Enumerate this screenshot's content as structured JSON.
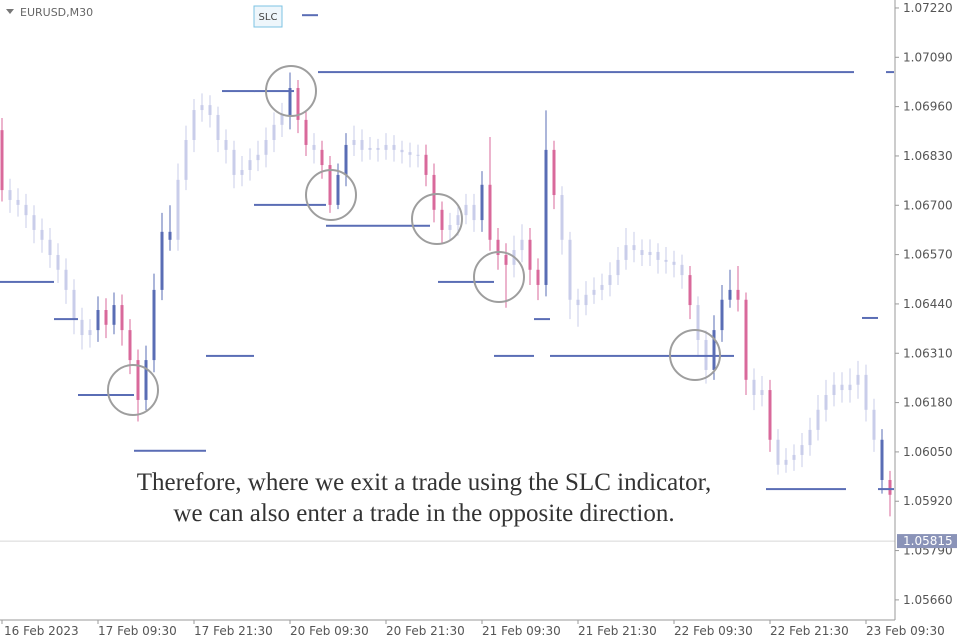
{
  "chart_data": {
    "type": "candlestick",
    "symbol": "EURUSD,M30",
    "indicator": "SLC",
    "caption": [
      "Therefore, where we exit a trade using the SLC indicator,",
      "we can also enter a trade in the opposite direction."
    ],
    "categories": [
      "16 Feb 2023",
      null,
      null,
      null,
      null,
      null,
      null,
      null,
      null,
      null,
      null,
      null,
      "17 Feb 09:30",
      null,
      null,
      null,
      null,
      null,
      null,
      null,
      null,
      null,
      null,
      null,
      "17 Feb 21:30",
      null,
      null,
      null,
      null,
      null,
      null,
      null,
      null,
      null,
      null,
      null,
      "20 Feb 09:30",
      null,
      null,
      null,
      null,
      null,
      null,
      null,
      null,
      null,
      null,
      null,
      "20 Feb 21:30",
      null,
      null,
      null,
      null,
      null,
      null,
      null,
      null,
      null,
      null,
      null,
      "21 Feb 09:30",
      null,
      null,
      null,
      null,
      null,
      null,
      null,
      null,
      null,
      null,
      null,
      "21 Feb 21:30",
      null,
      null,
      null,
      null,
      null,
      null,
      null,
      null,
      null,
      null,
      null,
      "22 Feb 09:30",
      null,
      null,
      null,
      null,
      null,
      null,
      null,
      null,
      null,
      null,
      null,
      "22 Feb 21:30",
      null,
      null,
      null,
      null,
      null,
      null,
      null,
      null,
      null,
      null,
      null,
      "23 Feb 09:30",
      null,
      null,
      null
    ],
    "open": [
      1.06898,
      1.0674,
      1.06714,
      1.06701,
      1.06674,
      1.06635,
      1.06609,
      1.06569,
      1.0653,
      1.06477,
      1.06398,
      1.06358,
      1.06371,
      1.06424,
      1.06385,
      1.06437,
      1.06371,
      1.06292,
      1.06187,
      1.06292,
      1.06477,
      1.0663,
      1.06609,
      1.06767,
      1.06872,
      1.06951,
      1.06964,
      1.06938,
      1.06872,
      1.06846,
      1.0678,
      1.06793,
      1.06819,
      1.06833,
      1.06872,
      1.06912,
      1.06938,
      1.07009,
      1.06925,
      1.06859,
      1.06846,
      1.06806,
      1.06701,
      1.0678,
      1.06859,
      1.06872,
      1.06846,
      1.06851,
      1.06846,
      1.06859,
      1.06846,
      1.0684,
      1.06833,
      1.06833,
      1.0678,
      1.06688,
      1.06635,
      1.06648,
      1.06674,
      1.06701,
      1.06661,
      1.06754,
      1.06609,
      1.06569,
      1.06543,
      1.06582,
      1.06609,
      1.0653,
      1.0649,
      1.06846,
      1.06727,
      1.06609,
      1.06451,
      1.06437,
      1.06464,
      1.06477,
      1.0649,
      1.06516,
      1.06556,
      1.06595,
      1.06582,
      1.06569,
      1.06577,
      1.06556,
      1.06551,
      1.06543,
      1.06516,
      1.06437,
      1.06345,
      1.06266,
      1.06371,
      1.06451,
      1.06477,
      1.06451,
      1.0624,
      1.062,
      1.06213,
      1.06082,
      1.06016,
      1.06029,
      1.06042,
      1.06068,
      1.06108,
      1.06161,
      1.062,
      1.06227,
      1.06213,
      1.06227,
      1.06253,
      1.06161,
      1.06082,
      1.05976
    ],
    "high": [
      1.0693,
      1.0677,
      1.06745,
      1.0673,
      1.067,
      1.06665,
      1.0664,
      1.066,
      1.0656,
      1.06505,
      1.0643,
      1.064,
      1.0646,
      1.06455,
      1.0647,
      1.06465,
      1.064,
      1.0632,
      1.0633,
      1.0652,
      1.0668,
      1.067,
      1.0681,
      1.0691,
      1.0698,
      1.06995,
      1.0699,
      1.0696,
      1.069,
      1.0687,
      1.0683,
      1.0685,
      1.0687,
      1.06905,
      1.06945,
      1.0697,
      1.0705,
      1.0703,
      1.0695,
      1.0689,
      1.0687,
      1.0683,
      1.0681,
      1.0689,
      1.0691,
      1.069,
      1.0688,
      1.06875,
      1.0689,
      1.06885,
      1.0687,
      1.06865,
      1.0686,
      1.0686,
      1.0681,
      1.0671,
      1.0668,
      1.067,
      1.0673,
      1.0673,
      1.0679,
      1.0688,
      1.0664,
      1.066,
      1.0662,
      1.0665,
      1.0664,
      1.0656,
      1.0695,
      1.0687,
      1.0675,
      1.0663,
      1.0648,
      1.065,
      1.0651,
      1.0652,
      1.0655,
      1.0659,
      1.0664,
      1.0663,
      1.0661,
      1.0661,
      1.066,
      1.0659,
      1.0658,
      1.0657,
      1.0654,
      1.0646,
      1.0637,
      1.0641,
      1.0649,
      1.0653,
      1.0654,
      1.0647,
      1.0627,
      1.0625,
      1.0624,
      1.0611,
      1.0606,
      1.0607,
      1.061,
      1.0614,
      1.062,
      1.0624,
      1.0626,
      1.0626,
      1.0627,
      1.0629,
      1.0628,
      1.0619,
      1.0611,
      1.06
    ],
    "low": [
      1.0671,
      1.0668,
      1.0667,
      1.0664,
      1.066,
      1.06575,
      1.06535,
      1.06495,
      1.0644,
      1.0636,
      1.0632,
      1.06325,
      1.0634,
      1.0635,
      1.0636,
      1.0633,
      1.06255,
      1.0613,
      1.0616,
      1.0626,
      1.0645,
      1.0658,
      1.0658,
      1.0674,
      1.0684,
      1.0692,
      1.06905,
      1.0684,
      1.0681,
      1.06745,
      1.0675,
      1.06765,
      1.0679,
      1.068,
      1.0684,
      1.0688,
      1.069,
      1.0689,
      1.0683,
      1.0681,
      1.0677,
      1.0668,
      1.0669,
      1.0675,
      1.0683,
      1.06815,
      1.0682,
      1.06815,
      1.0682,
      1.06815,
      1.0681,
      1.068,
      1.068,
      1.0675,
      1.06655,
      1.066,
      1.06605,
      1.0662,
      1.0665,
      1.0663,
      1.0663,
      1.0658,
      1.0653,
      1.0643,
      1.0651,
      1.0655,
      1.0649,
      1.0645,
      1.0646,
      1.0669,
      1.0657,
      1.064,
      1.0638,
      1.0641,
      1.0644,
      1.0645,
      1.0646,
      1.0649,
      1.0653,
      1.0655,
      1.0654,
      1.0654,
      1.0652,
      1.0652,
      1.0651,
      1.0648,
      1.064,
      1.063,
      1.0623,
      1.0624,
      1.0634,
      1.0643,
      1.0642,
      1.062,
      1.0616,
      1.0617,
      1.0605,
      1.0599,
      1.05995,
      1.06,
      1.0601,
      1.0604,
      1.0608,
      1.0613,
      1.0617,
      1.0618,
      1.0618,
      1.0619,
      1.0613,
      1.0605,
      1.0594,
      1.0588
    ],
    "close": [
      1.0674,
      1.06714,
      1.06701,
      1.06674,
      1.06635,
      1.06609,
      1.06569,
      1.0653,
      1.06477,
      1.06398,
      1.06358,
      1.06371,
      1.06424,
      1.06385,
      1.06437,
      1.06371,
      1.06292,
      1.06187,
      1.06292,
      1.06477,
      1.0663,
      1.06609,
      1.06767,
      1.06872,
      1.06951,
      1.06964,
      1.06938,
      1.06872,
      1.06846,
      1.0678,
      1.06793,
      1.06819,
      1.06833,
      1.06872,
      1.06912,
      1.06938,
      1.07009,
      1.06925,
      1.06859,
      1.06846,
      1.06806,
      1.06701,
      1.0678,
      1.06859,
      1.06872,
      1.06846,
      1.06851,
      1.06846,
      1.06859,
      1.06846,
      1.0684,
      1.06833,
      1.06833,
      1.0678,
      1.06688,
      1.06635,
      1.06648,
      1.06674,
      1.06701,
      1.06661,
      1.06754,
      1.06609,
      1.06569,
      1.06543,
      1.06582,
      1.06609,
      1.0653,
      1.0649,
      1.06846,
      1.06727,
      1.06609,
      1.06451,
      1.06437,
      1.06464,
      1.06477,
      1.0649,
      1.06516,
      1.06556,
      1.06595,
      1.06582,
      1.06569,
      1.06577,
      1.06556,
      1.06551,
      1.06543,
      1.06516,
      1.06437,
      1.06345,
      1.06266,
      1.06371,
      1.06451,
      1.06477,
      1.06451,
      1.0624,
      1.062,
      1.06213,
      1.06082,
      1.06016,
      1.06029,
      1.06042,
      1.06068,
      1.06108,
      1.06161,
      1.062,
      1.06227,
      1.06213,
      1.06227,
      1.06253,
      1.06161,
      1.06082,
      1.05976,
      1.05937
    ],
    "colors": [
      "#d9699b",
      "#c9cdea",
      "#c9cdea",
      "#c9cdea",
      "#c9cdea",
      "#c9cdea",
      "#c9cdea",
      "#c9cdea",
      "#c9cdea",
      "#c9cdea",
      "#c9cdea",
      "#c9cdea",
      "#5a6db5",
      "#d9699b",
      "#5a6db5",
      "#d9699b",
      "#d9699b",
      "#d9699b",
      "#5a6db5",
      "#5a6db5",
      "#5a6db5",
      "#5a6db5",
      "#c9cdea",
      "#c9cdea",
      "#c9cdea",
      "#c9cdea",
      "#c9cdea",
      "#c9cdea",
      "#c9cdea",
      "#c9cdea",
      "#c9cdea",
      "#c9cdea",
      "#c9cdea",
      "#c9cdea",
      "#c9cdea",
      "#c9cdea",
      "#5a6db5",
      "#d9699b",
      "#d9699b",
      "#c9cdea",
      "#d9699b",
      "#d9699b",
      "#5a6db5",
      "#5a6db5",
      "#c9cdea",
      "#c9cdea",
      "#c9cdea",
      "#c9cdea",
      "#c9cdea",
      "#c9cdea",
      "#c9cdea",
      "#c9cdea",
      "#c9cdea",
      "#d9699b",
      "#d9699b",
      "#d9699b",
      "#c9cdea",
      "#c9cdea",
      "#c9cdea",
      "#c9cdea",
      "#5a6db5",
      "#d9699b",
      "#d9699b",
      "#d9699b",
      "#c9cdea",
      "#c9cdea",
      "#d9699b",
      "#d9699b",
      "#5a6db5",
      "#d9699b",
      "#c9cdea",
      "#c9cdea",
      "#c9cdea",
      "#c9cdea",
      "#c9cdea",
      "#c9cdea",
      "#c9cdea",
      "#c9cdea",
      "#c9cdea",
      "#c9cdea",
      "#c9cdea",
      "#c9cdea",
      "#c9cdea",
      "#c9cdea",
      "#c9cdea",
      "#c9cdea",
      "#d9699b",
      "#c9cdea",
      "#c9cdea",
      "#5a6db5",
      "#5a6db5",
      "#5a6db5",
      "#d9699b",
      "#d9699b",
      "#c9cdea",
      "#c9cdea",
      "#d9699b",
      "#c9cdea",
      "#c9cdea",
      "#c9cdea",
      "#c9cdea",
      "#c9cdea",
      "#c9cdea",
      "#c9cdea",
      "#c9cdea",
      "#c9cdea",
      "#c9cdea",
      "#c9cdea",
      "#c9cdea",
      "#c9cdea",
      "#5a6db5",
      "#d9699b"
    ],
    "levels": [
      {
        "color": "#5a6db5",
        "values": [
          1.06498,
          1.06498,
          1.06498,
          1.06498,
          1.06498,
          1.06498,
          1.06498,
          1.064,
          1.064,
          1.064,
          1.062,
          1.062,
          1.062,
          1.062,
          1.062,
          1.062,
          1.062,
          1.06053,
          1.06053,
          1.06053,
          1.06053,
          1.06053,
          1.06053,
          1.06053,
          1.06053,
          1.06053,
          1.06303,
          1.06303,
          1.06303,
          1.06303,
          1.06303,
          1.06303,
          1.06701,
          1.06701,
          1.06701,
          1.06701,
          1.06701,
          1.06701,
          1.06701,
          1.06701,
          1.06701,
          1.06646,
          1.06646,
          1.06646,
          1.06646,
          1.06646,
          1.06646,
          1.06646,
          1.06646,
          1.06646,
          1.06646,
          1.06646,
          1.06646,
          1.06646,
          null,
          1.06498,
          1.06498,
          1.06498,
          1.06498,
          1.06498,
          1.06498,
          1.06498,
          1.06303,
          1.06303,
          1.06303,
          1.06303,
          1.06303,
          1.064,
          1.064,
          1.06303,
          1.06303,
          1.06303,
          1.06303,
          1.06303,
          1.06303,
          1.06303,
          1.06303,
          1.06303,
          1.06303,
          1.06303,
          1.06303,
          1.06303,
          1.06303,
          1.06303,
          1.06303,
          1.06303,
          1.06303,
          1.06303,
          1.06303,
          1.06303,
          1.06303,
          1.06303,
          null,
          null,
          null,
          null,
          1.05952,
          1.05952,
          1.05952,
          1.05952,
          1.05952,
          1.05952,
          1.05952,
          1.05952,
          1.05952,
          1.05952,
          null,
          null,
          null,
          null,
          1.05952,
          1.05952
        ]
      },
      {
        "color": "#5a6db5",
        "values": [
          null,
          null,
          null,
          null,
          null,
          null,
          null,
          null,
          null,
          null,
          null,
          null,
          null,
          null,
          null,
          null,
          null,
          null,
          null,
          null,
          null,
          null,
          null,
          null,
          null,
          null,
          null,
          null,
          1.07001,
          1.07001,
          1.07001,
          1.07001,
          1.07001,
          1.07001,
          1.07001,
          1.07001,
          1.07001,
          null,
          1.07201,
          1.07201,
          1.07051,
          1.07051,
          1.07051,
          1.07051,
          1.07051,
          1.07051,
          1.07051,
          1.07051,
          1.07051,
          1.07051,
          1.07051,
          1.07051,
          1.07051,
          1.07051,
          1.07051,
          1.07051,
          1.07051,
          1.07051,
          1.07051,
          1.07051,
          1.07051,
          1.07051,
          1.07051,
          1.07051,
          1.07051,
          1.07051,
          1.07051,
          1.07051,
          1.07051,
          1.07051,
          1.07051,
          1.07051,
          1.07051,
          1.07051,
          1.07051,
          1.07051,
          1.07051,
          1.07051,
          1.07051,
          1.07051,
          1.07051,
          1.07051,
          1.07051,
          1.07051,
          1.07051,
          1.07051,
          1.07051,
          1.07051,
          1.07051,
          1.07051,
          1.07051,
          1.07051,
          1.07051,
          1.07051,
          1.07051,
          1.07051,
          1.07051,
          1.07051,
          1.07051,
          1.07051,
          1.07051,
          1.07051,
          1.07051,
          1.07051,
          1.07051,
          1.07051,
          1.07051,
          null,
          1.06403,
          1.06403,
          null,
          1.07051
        ]
      }
    ],
    "last_price": 1.05815,
    "ylim": [
      1.05607,
      1.07241
    ],
    "yticks": [
      {
        "value": 1.0722,
        "label": "1.07220"
      },
      {
        "value": 1.0709,
        "label": "1.07090"
      },
      {
        "value": 1.0696,
        "label": "1.06960"
      },
      {
        "value": 1.0683,
        "label": "1.06830"
      },
      {
        "value": 1.067,
        "label": "1.06700"
      },
      {
        "value": 1.0657,
        "label": "1.06570"
      },
      {
        "value": 1.0644,
        "label": "1.06440"
      },
      {
        "value": 1.0631,
        "label": "1.06310"
      },
      {
        "value": 1.0618,
        "label": "1.06180"
      },
      {
        "value": 1.0605,
        "label": "1.06050"
      },
      {
        "value": 1.0592,
        "label": "1.05920"
      },
      {
        "value": 1.0579,
        "label": "1.05790"
      },
      {
        "value": 1.0566,
        "label": "1.05660"
      }
    ],
    "grid": false
  }
}
